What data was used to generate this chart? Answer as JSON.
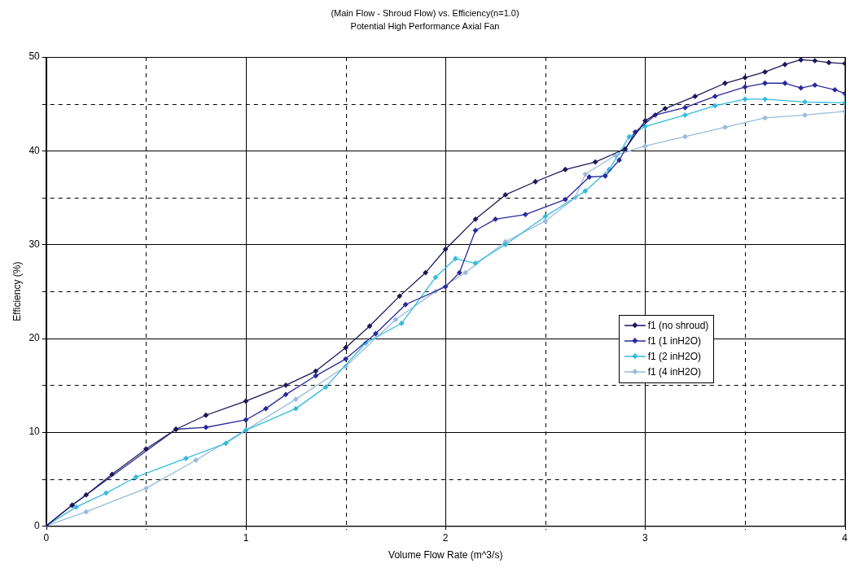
{
  "chart_data": {
    "type": "line",
    "title": "(Main Flow - Shroud Flow) vs. Efficiency(n=1.0)",
    "subtitle": "Potential High Performance Axial Fan",
    "xlabel": "Volume Flow Rate (m^3/s)",
    "ylabel": "Efficiency (%)",
    "xlim": [
      0,
      4
    ],
    "xticks": [
      0,
      {
        "value": 0.5,
        "label": null
      },
      1,
      {
        "value": 1.5,
        "label": null
      },
      2,
      {
        "value": 2.5,
        "label": null
      },
      3,
      {
        "value": 3.5,
        "label": null
      },
      4
    ],
    "ylim": [
      0,
      50
    ],
    "yticks": [
      0,
      {
        "value": 5,
        "label": null
      },
      10,
      {
        "value": 15,
        "label": null
      },
      20,
      {
        "value": 25,
        "label": null
      },
      30,
      {
        "value": 35,
        "label": null
      },
      40,
      {
        "value": 45,
        "label": null
      },
      50
    ],
    "grid": true,
    "legend": "center right",
    "marker": "diamond",
    "line_style": "solid",
    "series": [
      {
        "name": "f1 (no shroud)",
        "color": "#1a1a5a",
        "x": [
          0,
          0.13,
          0.2,
          0.33,
          0.5,
          0.65,
          0.8,
          1.0,
          1.2,
          1.35,
          1.5,
          1.62,
          1.77,
          1.9,
          2.0,
          2.15,
          2.3,
          2.45,
          2.6,
          2.75,
          2.9,
          3.0,
          3.1,
          3.25,
          3.4,
          3.5,
          3.6,
          3.7,
          3.78,
          3.85,
          3.92,
          4.0
        ],
        "values": [
          0,
          2.2,
          3.3,
          5.5,
          8.2,
          10.3,
          11.8,
          13.3,
          15,
          16.5,
          19,
          21.3,
          24.5,
          27,
          29.5,
          32.7,
          35.3,
          36.7,
          38,
          38.8,
          40.2,
          43.2,
          44.5,
          45.8,
          47.2,
          47.8,
          48.4,
          49.2,
          49.7,
          49.6,
          49.4,
          49.3
        ]
      },
      {
        "name": "f1 (1 inH2O)",
        "color": "#2a2a9a",
        "x": [
          0,
          0.13,
          0.65,
          0.8,
          1.0,
          1.1,
          1.2,
          1.35,
          1.5,
          1.65,
          1.8,
          2.0,
          2.07,
          2.15,
          2.25,
          2.4,
          2.6,
          2.72,
          2.8,
          2.87,
          2.95,
          3.05,
          3.2,
          3.35,
          3.5,
          3.6,
          3.7,
          3.78,
          3.85,
          3.95,
          4.0
        ],
        "values": [
          0,
          2.2,
          10.3,
          10.5,
          11.3,
          12.5,
          14,
          16,
          17.8,
          20.5,
          23.6,
          25.5,
          27,
          31.5,
          32.7,
          33.2,
          34.8,
          37.2,
          37.3,
          39,
          42,
          43.8,
          44.6,
          45.8,
          46.8,
          47.2,
          47.2,
          46.7,
          47,
          46.5,
          46.1
        ]
      },
      {
        "name": "f1 (2 inH2O)",
        "color": "#33bbdd",
        "x": [
          0,
          0.15,
          0.3,
          0.45,
          0.7,
          0.9,
          1.0,
          1.25,
          1.4,
          1.6,
          1.78,
          1.95,
          2.05,
          2.15,
          2.3,
          2.5,
          2.7,
          2.82,
          2.92,
          3.0,
          3.2,
          3.35,
          3.5,
          3.6,
          3.8,
          4.0
        ],
        "values": [
          0,
          2,
          3.5,
          5.2,
          7.2,
          8.8,
          10.2,
          12.5,
          14.8,
          19.5,
          21.6,
          26.5,
          28.5,
          28,
          30,
          33,
          35.7,
          38,
          41.5,
          42.6,
          43.8,
          44.8,
          45.5,
          45.5,
          45.2,
          45.1
        ]
      },
      {
        "name": "f1 (4 inH2O)",
        "color": "#99bbdd",
        "x": [
          0,
          0.2,
          0.5,
          0.75,
          1.0,
          1.25,
          1.5,
          1.75,
          1.95,
          2.1,
          2.3,
          2.5,
          2.65,
          2.7,
          2.85,
          3.0,
          3.2,
          3.4,
          3.6,
          3.8,
          4.0
        ],
        "values": [
          0,
          1.5,
          4,
          7,
          10.2,
          13.5,
          17,
          22,
          25,
          27,
          30.3,
          32.5,
          35,
          37.5,
          39.5,
          40.5,
          41.5,
          42.5,
          43.5,
          43.8,
          44.2
        ]
      }
    ]
  }
}
